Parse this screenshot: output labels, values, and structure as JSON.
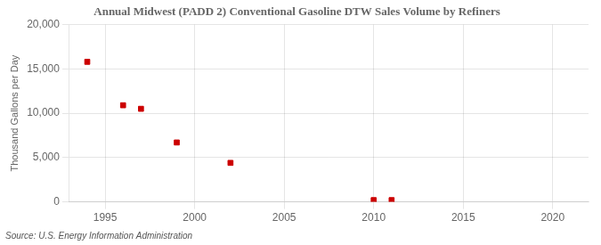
{
  "chart_data": {
    "type": "scatter",
    "title": "Annual Midwest (PADD 2) Conventional Gasoline DTW Sales Volume by Refiners",
    "ylabel": "Thousand Gallons per Day",
    "source": "Source: U.S. Energy Information Administration",
    "x": [
      1994,
      1996,
      1997,
      1999,
      2002,
      2010,
      2011
    ],
    "values": [
      15800,
      10900,
      10500,
      6700,
      4400,
      200,
      200
    ],
    "color": "#cc0000",
    "marker": "square",
    "xlim": [
      1993,
      2022
    ],
    "ylim": [
      0,
      20000
    ],
    "xticks": [
      1995,
      2000,
      2005,
      2010,
      2015,
      2020
    ],
    "yticks": [
      {
        "value": 0,
        "label": "0"
      },
      {
        "value": 5000,
        "label": "5,000"
      },
      {
        "value": 10000,
        "label": "10,000"
      },
      {
        "value": 15000,
        "label": "15,000"
      },
      {
        "value": 20000,
        "label": "20,000"
      }
    ],
    "grid": true
  }
}
